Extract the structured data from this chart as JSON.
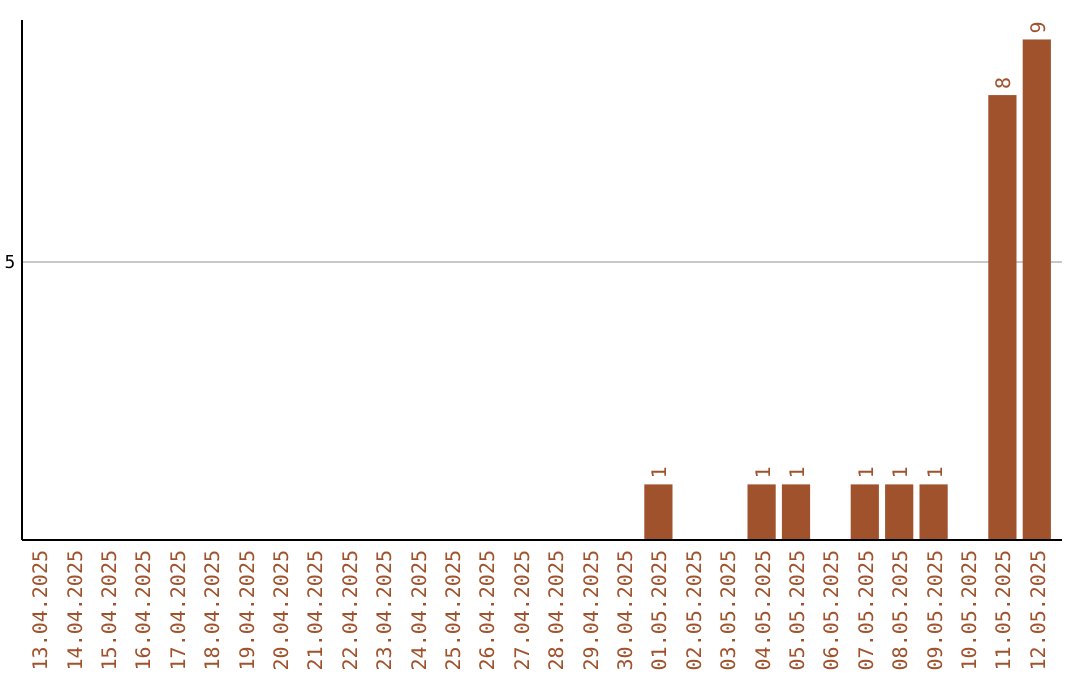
{
  "chart_data": {
    "type": "bar",
    "categories": [
      "13.04.2025",
      "14.04.2025",
      "15.04.2025",
      "16.04.2025",
      "17.04.2025",
      "18.04.2025",
      "19.04.2025",
      "20.04.2025",
      "21.04.2025",
      "22.04.2025",
      "23.04.2025",
      "24.04.2025",
      "25.04.2025",
      "26.04.2025",
      "27.04.2025",
      "28.04.2025",
      "29.04.2025",
      "30.04.2025",
      "01.05.2025",
      "02.05.2025",
      "03.05.2025",
      "04.05.2025",
      "05.05.2025",
      "06.05.2025",
      "07.05.2025",
      "08.05.2025",
      "09.05.2025",
      "10.05.2025",
      "11.05.2025",
      "12.05.2025"
    ],
    "values": [
      null,
      null,
      null,
      null,
      null,
      null,
      null,
      null,
      null,
      null,
      null,
      null,
      null,
      null,
      null,
      null,
      null,
      null,
      1,
      null,
      null,
      1,
      1,
      null,
      1,
      1,
      1,
      null,
      8,
      9
    ],
    "data_labels": true,
    "color": "#a0522d",
    "ylim": [
      0,
      9.35
    ],
    "yticks": [
      5
    ],
    "grid": "y"
  }
}
